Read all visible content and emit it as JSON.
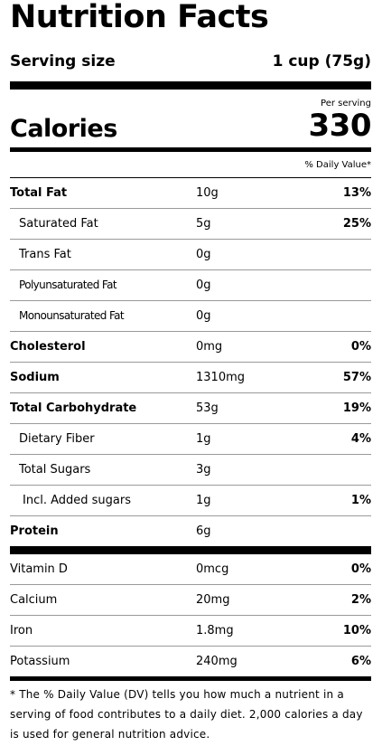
{
  "title": "Nutrition Facts",
  "serving": {
    "label": "Serving size",
    "value": "1 cup (75g)"
  },
  "calories": {
    "per_serving_label": "Per serving",
    "label": "Calories",
    "value": "330"
  },
  "daily_value_header": "% Daily Value*",
  "nutrients": [
    {
      "name": "Total Fat",
      "amount": "10g",
      "dv": "13%"
    },
    {
      "name": "Saturated Fat",
      "amount": "5g",
      "dv": "25%"
    },
    {
      "name": "Trans Fat",
      "amount": "0g",
      "dv": ""
    },
    {
      "name": "Polyunsaturated Fat",
      "amount": "0g",
      "dv": ""
    },
    {
      "name": "Monounsaturated Fat",
      "amount": "0g",
      "dv": ""
    },
    {
      "name": "Cholesterol",
      "amount": "0mg",
      "dv": "0%"
    },
    {
      "name": "Sodium",
      "amount": "1310mg",
      "dv": "57%"
    },
    {
      "name": "Total Carbohydrate",
      "amount": "53g",
      "dv": "19%"
    },
    {
      "name": "Dietary Fiber",
      "amount": "1g",
      "dv": "4%"
    },
    {
      "name": "Total Sugars",
      "amount": "3g",
      "dv": ""
    },
    {
      "name": "Incl. Added sugars",
      "amount": "1g",
      "dv": "1%"
    },
    {
      "name": "Protein",
      "amount": "6g",
      "dv": ""
    }
  ],
  "vitamins": [
    {
      "name": "Vitamin D",
      "amount": "0mcg",
      "dv": "0%"
    },
    {
      "name": "Calcium",
      "amount": "20mg",
      "dv": "2%"
    },
    {
      "name": "Iron",
      "amount": "1.8mg",
      "dv": "10%"
    },
    {
      "name": "Potassium",
      "amount": "240mg",
      "dv": "6%"
    }
  ],
  "footnote": "* The % Daily Value (DV) tells you how much a nutrient in a serving of food contributes to a daily diet. 2,000 calories a day is used for general nutrition advice."
}
